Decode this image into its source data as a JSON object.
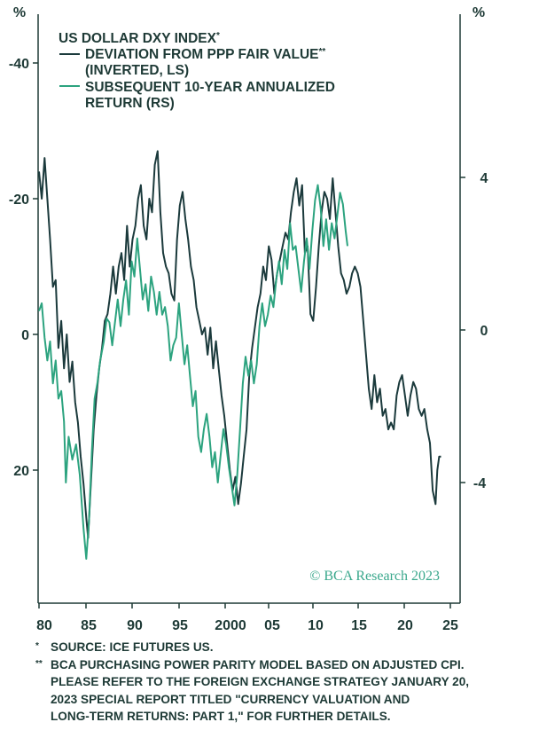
{
  "colors": {
    "navy": "#1b3a3c",
    "green": "#2ca37f",
    "frame": "#1e3a36",
    "credit": "#3aa88c"
  },
  "chart_data": {
    "type": "line",
    "title": "US DOLLAR DXY INDEX",
    "title_mark": "*",
    "legend": [
      {
        "line1": "DEVIATION FROM PPP FAIR VALUE",
        "mark": "**",
        "line2": "(INVERTED, LS)"
      },
      {
        "line1": "SUBSEQUENT 10-YEAR ANNUALIZED",
        "mark": "",
        "line2": "RETURN (RS)"
      }
    ],
    "left_axis": {
      "unit_label": "%",
      "inverted": true,
      "ticks": [
        "-40",
        "-20",
        "0",
        "20"
      ],
      "range": [
        -45,
        40
      ]
    },
    "right_axis": {
      "unit_label": "%",
      "ticks": [
        "4",
        "0",
        "-4"
      ],
      "range": [
        -7.5,
        8
      ]
    },
    "x_ticks": [
      "80",
      "85",
      "90",
      "95",
      "2000",
      "05",
      "10",
      "15",
      "20",
      "25"
    ],
    "xlim": [
      1980,
      2025.8
    ],
    "grid": false,
    "series": [
      {
        "name": "DEVIATION FROM PPP FAIR VALUE (INVERTED, LS)",
        "axis": "left",
        "points": [
          [
            1980.0,
            -24
          ],
          [
            1980.3,
            -20
          ],
          [
            1980.6,
            -26
          ],
          [
            1980.9,
            -20
          ],
          [
            1981.2,
            -14
          ],
          [
            1981.5,
            -7
          ],
          [
            1981.8,
            -8
          ],
          [
            1982.1,
            2
          ],
          [
            1982.4,
            -2
          ],
          [
            1982.7,
            5
          ],
          [
            1983.0,
            0
          ],
          [
            1983.3,
            7
          ],
          [
            1983.6,
            4
          ],
          [
            1983.9,
            10
          ],
          [
            1984.2,
            13
          ],
          [
            1984.5,
            18
          ],
          [
            1984.8,
            22
          ],
          [
            1985.1,
            27
          ],
          [
            1985.3,
            30
          ],
          [
            1985.6,
            22
          ],
          [
            1985.9,
            14
          ],
          [
            1986.2,
            9
          ],
          [
            1986.5,
            5
          ],
          [
            1986.8,
            2
          ],
          [
            1987.1,
            -2
          ],
          [
            1987.4,
            -3
          ],
          [
            1987.7,
            -6
          ],
          [
            1988.0,
            -10
          ],
          [
            1988.3,
            -6
          ],
          [
            1988.6,
            -10
          ],
          [
            1988.9,
            -12
          ],
          [
            1989.2,
            -8
          ],
          [
            1989.5,
            -16
          ],
          [
            1989.8,
            -10
          ],
          [
            1990.1,
            -14
          ],
          [
            1990.4,
            -16
          ],
          [
            1990.7,
            -20
          ],
          [
            1991.0,
            -22
          ],
          [
            1991.3,
            -16
          ],
          [
            1991.6,
            -14
          ],
          [
            1991.9,
            -20
          ],
          [
            1992.2,
            -18
          ],
          [
            1992.5,
            -25
          ],
          [
            1992.8,
            -27
          ],
          [
            1993.1,
            -18
          ],
          [
            1993.4,
            -12
          ],
          [
            1993.7,
            -10
          ],
          [
            1994.0,
            -9
          ],
          [
            1994.3,
            -6
          ],
          [
            1994.6,
            -5
          ],
          [
            1994.9,
            -14
          ],
          [
            1995.2,
            -19
          ],
          [
            1995.5,
            -21
          ],
          [
            1995.8,
            -17
          ],
          [
            1996.1,
            -14
          ],
          [
            1996.4,
            -10
          ],
          [
            1996.7,
            -8
          ],
          [
            1997.0,
            -4
          ],
          [
            1997.3,
            -2
          ],
          [
            1997.6,
            0
          ],
          [
            1997.9,
            -1
          ],
          [
            1998.2,
            3
          ],
          [
            1998.5,
            -1
          ],
          [
            1998.8,
            5
          ],
          [
            1999.1,
            1
          ],
          [
            1999.4,
            5
          ],
          [
            1999.7,
            9
          ],
          [
            2000.0,
            12
          ],
          [
            2000.3,
            16
          ],
          [
            2000.6,
            20
          ],
          [
            2000.9,
            23
          ],
          [
            2001.2,
            21
          ],
          [
            2001.5,
            25
          ],
          [
            2001.8,
            22
          ],
          [
            2002.1,
            18
          ],
          [
            2002.4,
            14
          ],
          [
            2002.7,
            6
          ],
          [
            2003.0,
            2
          ],
          [
            2003.3,
            -1
          ],
          [
            2003.6,
            -4
          ],
          [
            2003.9,
            -6
          ],
          [
            2004.2,
            -10
          ],
          [
            2004.5,
            -8
          ],
          [
            2004.8,
            -13
          ],
          [
            2005.1,
            -11
          ],
          [
            2005.4,
            -6
          ],
          [
            2005.7,
            -9
          ],
          [
            2006.0,
            -11
          ],
          [
            2006.3,
            -13
          ],
          [
            2006.6,
            -15
          ],
          [
            2006.9,
            -14
          ],
          [
            2007.2,
            -18
          ],
          [
            2007.5,
            -21
          ],
          [
            2007.8,
            -23
          ],
          [
            2008.1,
            -19
          ],
          [
            2008.4,
            -22
          ],
          [
            2008.7,
            -12
          ],
          [
            2009.0,
            -13
          ],
          [
            2009.3,
            -3
          ],
          [
            2009.6,
            -2
          ],
          [
            2009.9,
            -7
          ],
          [
            2010.2,
            -13
          ],
          [
            2010.5,
            -18
          ],
          [
            2010.8,
            -21
          ],
          [
            2011.1,
            -20
          ],
          [
            2011.4,
            -17
          ],
          [
            2011.7,
            -23
          ],
          [
            2012.0,
            -18
          ],
          [
            2012.3,
            -13
          ],
          [
            2012.6,
            -9
          ],
          [
            2012.9,
            -8
          ],
          [
            2013.2,
            -6
          ],
          [
            2013.5,
            -7
          ],
          [
            2013.8,
            -9
          ],
          [
            2014.1,
            -10
          ],
          [
            2014.4,
            -9
          ],
          [
            2014.7,
            -7
          ],
          [
            2015.0,
            -2
          ],
          [
            2015.3,
            3
          ],
          [
            2015.6,
            8
          ],
          [
            2015.9,
            11
          ],
          [
            2016.2,
            6
          ],
          [
            2016.5,
            10
          ],
          [
            2016.8,
            8
          ],
          [
            2017.1,
            12
          ],
          [
            2017.4,
            11
          ],
          [
            2017.7,
            14
          ],
          [
            2018.0,
            13
          ],
          [
            2018.3,
            14
          ],
          [
            2018.6,
            9
          ],
          [
            2018.9,
            7
          ],
          [
            2019.2,
            6
          ],
          [
            2019.5,
            9
          ],
          [
            2019.8,
            12
          ],
          [
            2020.1,
            9
          ],
          [
            2020.4,
            7
          ],
          [
            2020.7,
            8
          ],
          [
            2021.0,
            11
          ],
          [
            2021.3,
            12
          ],
          [
            2021.6,
            11
          ],
          [
            2021.9,
            14
          ],
          [
            2022.2,
            16
          ],
          [
            2022.5,
            23
          ],
          [
            2022.8,
            25
          ],
          [
            2023.0,
            20
          ],
          [
            2023.2,
            18
          ],
          [
            2023.4,
            18
          ]
        ]
      },
      {
        "name": "SUBSEQUENT 10-YEAR ANNUALIZED RETURN (RS)",
        "axis": "right",
        "points": [
          [
            1980.0,
            0.5
          ],
          [
            1980.3,
            0.7
          ],
          [
            1980.6,
            -0.2
          ],
          [
            1980.9,
            -0.8
          ],
          [
            1981.2,
            -0.3
          ],
          [
            1981.5,
            -1.4
          ],
          [
            1981.8,
            -0.8
          ],
          [
            1982.1,
            -1.8
          ],
          [
            1982.4,
            -1.6
          ],
          [
            1982.7,
            -2.4
          ],
          [
            1982.9,
            -4.0
          ],
          [
            1983.2,
            -2.8
          ],
          [
            1983.6,
            -3.4
          ],
          [
            1984.0,
            -3.0
          ],
          [
            1984.4,
            -3.8
          ],
          [
            1984.8,
            -5.2
          ],
          [
            1985.1,
            -6.0
          ],
          [
            1985.4,
            -5.0
          ],
          [
            1985.7,
            -3.2
          ],
          [
            1986.0,
            -1.8
          ],
          [
            1986.3,
            -1.4
          ],
          [
            1986.6,
            -0.8
          ],
          [
            1987.0,
            -0.3
          ],
          [
            1987.3,
            0.3
          ],
          [
            1987.6,
            0.2
          ],
          [
            1987.9,
            -0.4
          ],
          [
            1988.2,
            0.2
          ],
          [
            1988.5,
            0.8
          ],
          [
            1988.8,
            0.1
          ],
          [
            1989.1,
            0.8
          ],
          [
            1989.4,
            1.3
          ],
          [
            1989.7,
            0.4
          ],
          [
            1990.0,
            1.8
          ],
          [
            1990.3,
            1.4
          ],
          [
            1990.6,
            2.4
          ],
          [
            1990.9,
            1.6
          ],
          [
            1991.2,
            0.8
          ],
          [
            1991.5,
            1.2
          ],
          [
            1991.8,
            0.5
          ],
          [
            1992.1,
            1.4
          ],
          [
            1992.4,
            1.0
          ],
          [
            1992.7,
            0.4
          ],
          [
            1993.0,
            1.0
          ],
          [
            1993.3,
            0.4
          ],
          [
            1993.6,
            0.6
          ],
          [
            1993.9,
            0.1
          ],
          [
            1994.2,
            -0.8
          ],
          [
            1994.5,
            -0.4
          ],
          [
            1994.8,
            -0.2
          ],
          [
            1995.1,
            0.7
          ],
          [
            1995.4,
            -0.1
          ],
          [
            1995.7,
            -0.9
          ],
          [
            1996.0,
            -0.4
          ],
          [
            1996.3,
            -1.2
          ],
          [
            1996.6,
            -2.0
          ],
          [
            1996.9,
            -1.6
          ],
          [
            1997.2,
            -2.8
          ],
          [
            1997.5,
            -3.2
          ],
          [
            1997.8,
            -2.6
          ],
          [
            1998.1,
            -2.2
          ],
          [
            1998.4,
            -2.8
          ],
          [
            1998.7,
            -3.6
          ],
          [
            1999.0,
            -3.2
          ],
          [
            1999.3,
            -4.0
          ],
          [
            1999.6,
            -3.3
          ],
          [
            1999.9,
            -2.6
          ],
          [
            2000.2,
            -3.0
          ],
          [
            2000.5,
            -3.6
          ],
          [
            2000.8,
            -4.1
          ],
          [
            2001.1,
            -4.6
          ],
          [
            2001.4,
            -3.8
          ],
          [
            2001.7,
            -2.6
          ],
          [
            2002.0,
            -1.4
          ],
          [
            2002.3,
            -0.7
          ],
          [
            2002.6,
            -1.2
          ],
          [
            2002.9,
            -0.8
          ],
          [
            2003.2,
            -1.4
          ],
          [
            2003.5,
            -0.9
          ],
          [
            2003.8,
            0.1
          ],
          [
            2004.1,
            0.7
          ],
          [
            2004.4,
            0.1
          ],
          [
            2004.7,
            0.4
          ],
          [
            2005.0,
            0.9
          ],
          [
            2005.3,
            0.6
          ],
          [
            2005.6,
            1.3
          ],
          [
            2005.9,
            1.8
          ],
          [
            2006.2,
            1.2
          ],
          [
            2006.5,
            2.1
          ],
          [
            2006.8,
            1.6
          ],
          [
            2007.1,
            2.8
          ],
          [
            2007.4,
            2.1
          ],
          [
            2007.7,
            2.2
          ],
          [
            2008.0,
            1.6
          ],
          [
            2008.3,
            1.0
          ],
          [
            2008.6,
            1.8
          ],
          [
            2008.9,
            2.4
          ],
          [
            2009.2,
            1.6
          ],
          [
            2009.5,
            2.6
          ],
          [
            2009.8,
            3.4
          ],
          [
            2010.1,
            3.8
          ],
          [
            2010.4,
            3.2
          ],
          [
            2010.7,
            2.2
          ],
          [
            2011.0,
            2.9
          ],
          [
            2011.3,
            2.1
          ],
          [
            2011.6,
            2.8
          ],
          [
            2011.9,
            2.4
          ],
          [
            2012.2,
            3.0
          ],
          [
            2012.5,
            3.6
          ],
          [
            2012.8,
            3.3
          ],
          [
            2013.1,
            2.6
          ],
          [
            2013.3,
            2.2
          ]
        ]
      }
    ],
    "credit": "© BCA Research 2023"
  },
  "footnotes": [
    {
      "mark": "*",
      "lines": [
        "SOURCE: ICE FUTURES US."
      ]
    },
    {
      "mark": "**",
      "lines": [
        "BCA PURCHASING POWER PARITY MODEL BASED ON ADJUSTED CPI.",
        "PLEASE REFER TO THE FOREIGN EXCHANGE STRATEGY JANUARY 20,",
        "2023 SPECIAL REPORT TITLED \"CURRENCY VALUATION AND",
        "LONG-TERM RETURNS: PART 1,\" FOR FURTHER DETAILS."
      ]
    }
  ]
}
